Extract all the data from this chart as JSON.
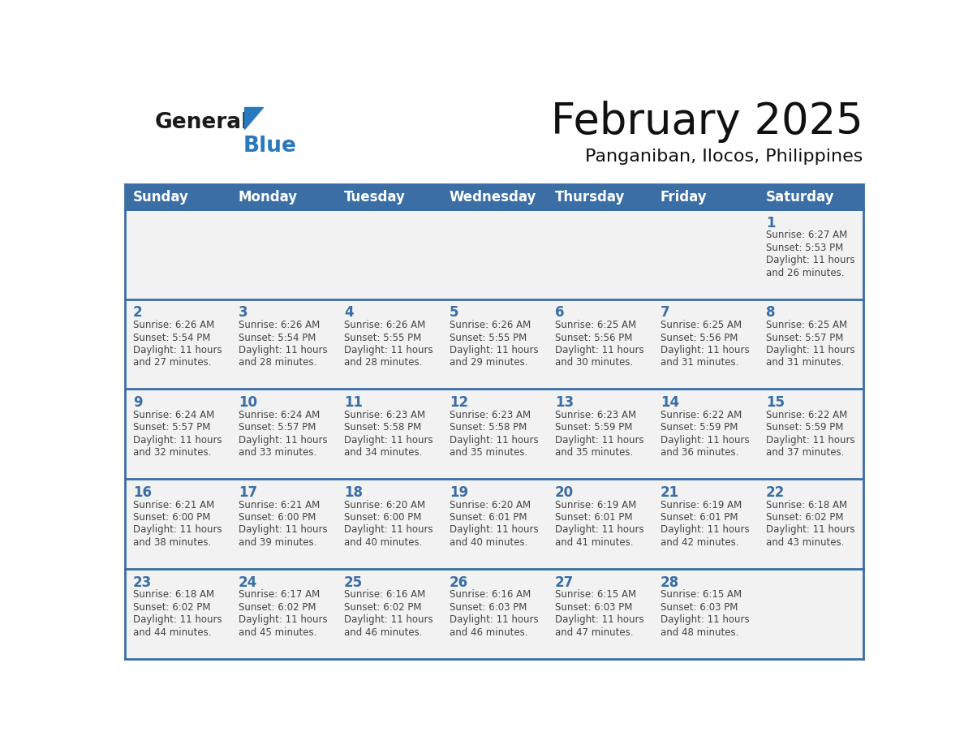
{
  "title": "February 2025",
  "subtitle": "Panganiban, Ilocos, Philippines",
  "header_bg_color": "#3a6ea5",
  "header_text_color": "#ffffff",
  "cell_bg_color": "#f2f2f2",
  "cell_border_color": "#3a6ea5",
  "day_number_color": "#3a6ea5",
  "cell_text_color": "#444444",
  "days_of_week": [
    "Sunday",
    "Monday",
    "Tuesday",
    "Wednesday",
    "Thursday",
    "Friday",
    "Saturday"
  ],
  "calendar_data": [
    [
      null,
      null,
      null,
      null,
      null,
      null,
      {
        "day": 1,
        "sunrise": "6:27 AM",
        "sunset": "5:53 PM",
        "daylight_line1": "Daylight: 11 hours",
        "daylight_line2": "and 26 minutes."
      }
    ],
    [
      {
        "day": 2,
        "sunrise": "6:26 AM",
        "sunset": "5:54 PM",
        "daylight_line1": "Daylight: 11 hours",
        "daylight_line2": "and 27 minutes."
      },
      {
        "day": 3,
        "sunrise": "6:26 AM",
        "sunset": "5:54 PM",
        "daylight_line1": "Daylight: 11 hours",
        "daylight_line2": "and 28 minutes."
      },
      {
        "day": 4,
        "sunrise": "6:26 AM",
        "sunset": "5:55 PM",
        "daylight_line1": "Daylight: 11 hours",
        "daylight_line2": "and 28 minutes."
      },
      {
        "day": 5,
        "sunrise": "6:26 AM",
        "sunset": "5:55 PM",
        "daylight_line1": "Daylight: 11 hours",
        "daylight_line2": "and 29 minutes."
      },
      {
        "day": 6,
        "sunrise": "6:25 AM",
        "sunset": "5:56 PM",
        "daylight_line1": "Daylight: 11 hours",
        "daylight_line2": "and 30 minutes."
      },
      {
        "day": 7,
        "sunrise": "6:25 AM",
        "sunset": "5:56 PM",
        "daylight_line1": "Daylight: 11 hours",
        "daylight_line2": "and 31 minutes."
      },
      {
        "day": 8,
        "sunrise": "6:25 AM",
        "sunset": "5:57 PM",
        "daylight_line1": "Daylight: 11 hours",
        "daylight_line2": "and 31 minutes."
      }
    ],
    [
      {
        "day": 9,
        "sunrise": "6:24 AM",
        "sunset": "5:57 PM",
        "daylight_line1": "Daylight: 11 hours",
        "daylight_line2": "and 32 minutes."
      },
      {
        "day": 10,
        "sunrise": "6:24 AM",
        "sunset": "5:57 PM",
        "daylight_line1": "Daylight: 11 hours",
        "daylight_line2": "and 33 minutes."
      },
      {
        "day": 11,
        "sunrise": "6:23 AM",
        "sunset": "5:58 PM",
        "daylight_line1": "Daylight: 11 hours",
        "daylight_line2": "and 34 minutes."
      },
      {
        "day": 12,
        "sunrise": "6:23 AM",
        "sunset": "5:58 PM",
        "daylight_line1": "Daylight: 11 hours",
        "daylight_line2": "and 35 minutes."
      },
      {
        "day": 13,
        "sunrise": "6:23 AM",
        "sunset": "5:59 PM",
        "daylight_line1": "Daylight: 11 hours",
        "daylight_line2": "and 35 minutes."
      },
      {
        "day": 14,
        "sunrise": "6:22 AM",
        "sunset": "5:59 PM",
        "daylight_line1": "Daylight: 11 hours",
        "daylight_line2": "and 36 minutes."
      },
      {
        "day": 15,
        "sunrise": "6:22 AM",
        "sunset": "5:59 PM",
        "daylight_line1": "Daylight: 11 hours",
        "daylight_line2": "and 37 minutes."
      }
    ],
    [
      {
        "day": 16,
        "sunrise": "6:21 AM",
        "sunset": "6:00 PM",
        "daylight_line1": "Daylight: 11 hours",
        "daylight_line2": "and 38 minutes."
      },
      {
        "day": 17,
        "sunrise": "6:21 AM",
        "sunset": "6:00 PM",
        "daylight_line1": "Daylight: 11 hours",
        "daylight_line2": "and 39 minutes."
      },
      {
        "day": 18,
        "sunrise": "6:20 AM",
        "sunset": "6:00 PM",
        "daylight_line1": "Daylight: 11 hours",
        "daylight_line2": "and 40 minutes."
      },
      {
        "day": 19,
        "sunrise": "6:20 AM",
        "sunset": "6:01 PM",
        "daylight_line1": "Daylight: 11 hours",
        "daylight_line2": "and 40 minutes."
      },
      {
        "day": 20,
        "sunrise": "6:19 AM",
        "sunset": "6:01 PM",
        "daylight_line1": "Daylight: 11 hours",
        "daylight_line2": "and 41 minutes."
      },
      {
        "day": 21,
        "sunrise": "6:19 AM",
        "sunset": "6:01 PM",
        "daylight_line1": "Daylight: 11 hours",
        "daylight_line2": "and 42 minutes."
      },
      {
        "day": 22,
        "sunrise": "6:18 AM",
        "sunset": "6:02 PM",
        "daylight_line1": "Daylight: 11 hours",
        "daylight_line2": "and 43 minutes."
      }
    ],
    [
      {
        "day": 23,
        "sunrise": "6:18 AM",
        "sunset": "6:02 PM",
        "daylight_line1": "Daylight: 11 hours",
        "daylight_line2": "and 44 minutes."
      },
      {
        "day": 24,
        "sunrise": "6:17 AM",
        "sunset": "6:02 PM",
        "daylight_line1": "Daylight: 11 hours",
        "daylight_line2": "and 45 minutes."
      },
      {
        "day": 25,
        "sunrise": "6:16 AM",
        "sunset": "6:02 PM",
        "daylight_line1": "Daylight: 11 hours",
        "daylight_line2": "and 46 minutes."
      },
      {
        "day": 26,
        "sunrise": "6:16 AM",
        "sunset": "6:03 PM",
        "daylight_line1": "Daylight: 11 hours",
        "daylight_line2": "and 46 minutes."
      },
      {
        "day": 27,
        "sunrise": "6:15 AM",
        "sunset": "6:03 PM",
        "daylight_line1": "Daylight: 11 hours",
        "daylight_line2": "and 47 minutes."
      },
      {
        "day": 28,
        "sunrise": "6:15 AM",
        "sunset": "6:03 PM",
        "daylight_line1": "Daylight: 11 hours",
        "daylight_line2": "and 48 minutes."
      },
      null
    ]
  ],
  "logo_general_color": "#1a1a1a",
  "logo_blue_color": "#2979be",
  "logo_triangle_color": "#2979be",
  "title_fontsize": 38,
  "subtitle_fontsize": 16,
  "header_fontsize": 12,
  "day_num_fontsize": 12,
  "cell_text_fontsize": 8.5
}
